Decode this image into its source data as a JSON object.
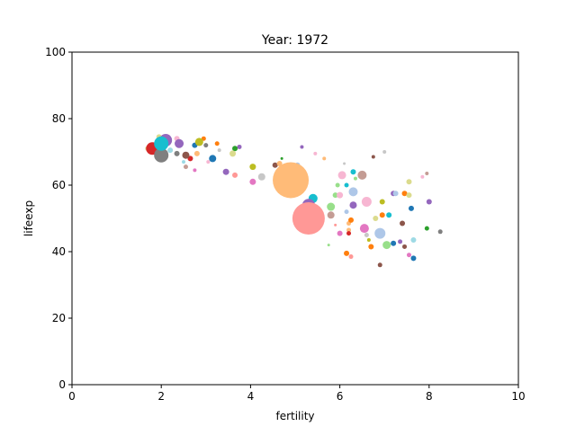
{
  "chart_data": {
    "type": "scatter",
    "title": "Year: 1972",
    "xlabel": "fertility",
    "ylabel": "lifeexp",
    "xlim": [
      0,
      10
    ],
    "ylim": [
      0,
      100
    ],
    "xticks": [
      "0",
      "2",
      "4",
      "6",
      "8",
      "10"
    ],
    "yticks": [
      "0",
      "20",
      "40",
      "60",
      "80",
      "100"
    ],
    "grid": false,
    "legend": "none",
    "points": [
      {
        "x": 4.9,
        "y": 61.5,
        "s": 20,
        "color": "#ffbb78"
      },
      {
        "x": 5.3,
        "y": 50.0,
        "s": 18,
        "color": "#ff9896"
      },
      {
        "x": 2.0,
        "y": 69.0,
        "s": 8,
        "color": "#7f7f7f"
      },
      {
        "x": 1.8,
        "y": 71.0,
        "s": 7,
        "color": "#d62728"
      },
      {
        "x": 2.1,
        "y": 73.5,
        "s": 7,
        "color": "#9467bd"
      },
      {
        "x": 2.0,
        "y": 72.5,
        "s": 8,
        "color": "#17becf"
      },
      {
        "x": 5.3,
        "y": 54.0,
        "s": 7,
        "color": "#9467bd"
      },
      {
        "x": 5.4,
        "y": 56.0,
        "s": 5,
        "color": "#17becf"
      },
      {
        "x": 6.5,
        "y": 63.0,
        "s": 5,
        "color": "#c49c94"
      },
      {
        "x": 6.6,
        "y": 55.0,
        "s": 5.5,
        "color": "#f7b6d2"
      },
      {
        "x": 6.3,
        "y": 58.0,
        "s": 5,
        "color": "#aec7e8"
      },
      {
        "x": 6.9,
        "y": 45.5,
        "s": 6,
        "color": "#aec7e8"
      },
      {
        "x": 6.55,
        "y": 47.0,
        "s": 5,
        "color": "#e377c2"
      },
      {
        "x": 7.05,
        "y": 42.0,
        "s": 4.5,
        "color": "#98df8a"
      },
      {
        "x": 5.8,
        "y": 53.5,
        "s": 4.5,
        "color": "#98df8a"
      },
      {
        "x": 5.8,
        "y": 51.0,
        "s": 4,
        "color": "#c49c94"
      },
      {
        "x": 6.05,
        "y": 63.0,
        "s": 4.5,
        "color": "#f7b6d2"
      },
      {
        "x": 6.3,
        "y": 54.0,
        "s": 4,
        "color": "#9467bd"
      },
      {
        "x": 2.4,
        "y": 72.5,
        "s": 5,
        "color": "#9467bd"
      },
      {
        "x": 2.85,
        "y": 73.0,
        "s": 4.5,
        "color": "#bcbd22"
      },
      {
        "x": 3.15,
        "y": 68.0,
        "s": 4,
        "color": "#1f77b4"
      },
      {
        "x": 2.55,
        "y": 69.0,
        "s": 4,
        "color": "#8c564b"
      },
      {
        "x": 3.6,
        "y": 69.5,
        "s": 3.5,
        "color": "#dbdb8d"
      },
      {
        "x": 4.25,
        "y": 62.5,
        "s": 4,
        "color": "#c7c7c7"
      },
      {
        "x": 4.05,
        "y": 65.5,
        "s": 3.5,
        "color": "#bcbd22"
      },
      {
        "x": 5.15,
        "y": 61.0,
        "s": 3.5,
        "color": "#98df8a"
      },
      {
        "x": 5.05,
        "y": 66.0,
        "s": 3,
        "color": "#aec7e8"
      },
      {
        "x": 4.55,
        "y": 66.0,
        "s": 3,
        "color": "#8c564b"
      },
      {
        "x": 4.65,
        "y": 66.5,
        "s": 3,
        "color": "#ffbb78"
      },
      {
        "x": 4.85,
        "y": 65.5,
        "s": 3,
        "color": "#ff7f0e"
      },
      {
        "x": 3.45,
        "y": 64.0,
        "s": 3.5,
        "color": "#9467bd"
      },
      {
        "x": 3.65,
        "y": 63.0,
        "s": 3,
        "color": "#ff9896"
      },
      {
        "x": 3.65,
        "y": 71.0,
        "s": 3,
        "color": "#2ca02c"
      },
      {
        "x": 3.75,
        "y": 71.5,
        "s": 2.5,
        "color": "#9467bd"
      },
      {
        "x": 4.05,
        "y": 61.0,
        "s": 3.5,
        "color": "#e377c2"
      },
      {
        "x": 3.25,
        "y": 72.5,
        "s": 2.5,
        "color": "#ff7f0e"
      },
      {
        "x": 3.0,
        "y": 72.0,
        "s": 2.5,
        "color": "#7f7f7f"
      },
      {
        "x": 2.75,
        "y": 72.0,
        "s": 3,
        "color": "#1f77b4"
      },
      {
        "x": 2.35,
        "y": 69.5,
        "s": 3,
        "color": "#7f7f7f"
      },
      {
        "x": 2.65,
        "y": 68.0,
        "s": 3,
        "color": "#d62728"
      },
      {
        "x": 2.8,
        "y": 69.5,
        "s": 3,
        "color": "#ffbb78"
      },
      {
        "x": 2.2,
        "y": 70.5,
        "s": 3,
        "color": "#9edae5"
      },
      {
        "x": 1.7,
        "y": 71.0,
        "s": 3,
        "color": "#dbdb8d"
      },
      {
        "x": 1.95,
        "y": 74.5,
        "s": 3,
        "color": "#dbdb8d"
      },
      {
        "x": 2.35,
        "y": 74.0,
        "s": 3,
        "color": "#f7b6d2"
      },
      {
        "x": 2.55,
        "y": 65.5,
        "s": 2.5,
        "color": "#c49c94"
      },
      {
        "x": 2.95,
        "y": 74.0,
        "s": 2.5,
        "color": "#ff7f0e"
      },
      {
        "x": 2.75,
        "y": 64.5,
        "s": 2,
        "color": "#e377c2"
      },
      {
        "x": 3.3,
        "y": 70.5,
        "s": 2,
        "color": "#c7c7c7"
      },
      {
        "x": 5.15,
        "y": 71.5,
        "s": 2,
        "color": "#9467bd"
      },
      {
        "x": 5.45,
        "y": 69.5,
        "s": 2,
        "color": "#f7b6d2"
      },
      {
        "x": 5.65,
        "y": 68.0,
        "s": 2,
        "color": "#ffbb78"
      },
      {
        "x": 5.9,
        "y": 57.0,
        "s": 3,
        "color": "#98df8a"
      },
      {
        "x": 6.0,
        "y": 57.0,
        "s": 3.5,
        "color": "#f7b6d2"
      },
      {
        "x": 5.95,
        "y": 60.0,
        "s": 2.5,
        "color": "#98df8a"
      },
      {
        "x": 6.15,
        "y": 60.0,
        "s": 2.5,
        "color": "#17becf"
      },
      {
        "x": 6.3,
        "y": 64.0,
        "s": 3,
        "color": "#17becf"
      },
      {
        "x": 6.0,
        "y": 45.5,
        "s": 3,
        "color": "#e377c2"
      },
      {
        "x": 6.2,
        "y": 46.5,
        "s": 2.5,
        "color": "#ffbb78"
      },
      {
        "x": 6.2,
        "y": 45.5,
        "s": 2.5,
        "color": "#d62728"
      },
      {
        "x": 6.25,
        "y": 49.5,
        "s": 3,
        "color": "#ff7f0e"
      },
      {
        "x": 6.2,
        "y": 48.5,
        "s": 2.5,
        "color": "#ffbb78"
      },
      {
        "x": 6.15,
        "y": 52.0,
        "s": 2.5,
        "color": "#aec7e8"
      },
      {
        "x": 6.15,
        "y": 39.5,
        "s": 3,
        "color": "#ff7f0e"
      },
      {
        "x": 6.25,
        "y": 38.5,
        "s": 2.5,
        "color": "#ff9896"
      },
      {
        "x": 6.7,
        "y": 41.5,
        "s": 3,
        "color": "#ff7f0e"
      },
      {
        "x": 6.8,
        "y": 50.0,
        "s": 3,
        "color": "#dbdb8d"
      },
      {
        "x": 6.95,
        "y": 51.0,
        "s": 3,
        "color": "#ff7f0e"
      },
      {
        "x": 6.95,
        "y": 55.0,
        "s": 3,
        "color": "#bcbd22"
      },
      {
        "x": 7.1,
        "y": 51.0,
        "s": 3,
        "color": "#17becf"
      },
      {
        "x": 7.2,
        "y": 57.5,
        "s": 3,
        "color": "#9467bd"
      },
      {
        "x": 7.25,
        "y": 57.5,
        "s": 3,
        "color": "#aec7e8"
      },
      {
        "x": 7.45,
        "y": 57.5,
        "s": 3,
        "color": "#ff7f0e"
      },
      {
        "x": 7.55,
        "y": 57.0,
        "s": 3,
        "color": "#dbdb8d"
      },
      {
        "x": 7.55,
        "y": 61.0,
        "s": 3,
        "color": "#dbdb8d"
      },
      {
        "x": 7.6,
        "y": 53.0,
        "s": 3,
        "color": "#1f77b4"
      },
      {
        "x": 7.4,
        "y": 48.5,
        "s": 3,
        "color": "#8c564b"
      },
      {
        "x": 7.2,
        "y": 42.5,
        "s": 3,
        "color": "#1f77b4"
      },
      {
        "x": 7.35,
        "y": 43.0,
        "s": 2.5,
        "color": "#9467bd"
      },
      {
        "x": 7.45,
        "y": 41.5,
        "s": 2.5,
        "color": "#8c564b"
      },
      {
        "x": 7.55,
        "y": 39.0,
        "s": 2.5,
        "color": "#e377c2"
      },
      {
        "x": 7.65,
        "y": 38.0,
        "s": 3,
        "color": "#1f77b4"
      },
      {
        "x": 7.65,
        "y": 43.5,
        "s": 3,
        "color": "#9edae5"
      },
      {
        "x": 7.95,
        "y": 47.0,
        "s": 2.5,
        "color": "#2ca02c"
      },
      {
        "x": 8.0,
        "y": 55.0,
        "s": 3,
        "color": "#9467bd"
      },
      {
        "x": 8.25,
        "y": 46.0,
        "s": 2.5,
        "color": "#7f7f7f"
      },
      {
        "x": 7.85,
        "y": 62.5,
        "s": 2,
        "color": "#f7b6d2"
      },
      {
        "x": 7.95,
        "y": 63.5,
        "s": 2,
        "color": "#c49c94"
      },
      {
        "x": 6.9,
        "y": 36.0,
        "s": 2.5,
        "color": "#8c564b"
      },
      {
        "x": 7.0,
        "y": 70.0,
        "s": 2,
        "color": "#c7c7c7"
      },
      {
        "x": 6.75,
        "y": 68.5,
        "s": 2,
        "color": "#8c564b"
      },
      {
        "x": 6.1,
        "y": 66.5,
        "s": 1.5,
        "color": "#c7c7c7"
      },
      {
        "x": 5.75,
        "y": 42.0,
        "s": 1.5,
        "color": "#98df8a"
      },
      {
        "x": 5.9,
        "y": 48.0,
        "s": 1.5,
        "color": "#ff9896"
      },
      {
        "x": 6.6,
        "y": 45.0,
        "s": 2.5,
        "color": "#c7c7c7"
      },
      {
        "x": 6.65,
        "y": 43.5,
        "s": 2,
        "color": "#bcbd22"
      },
      {
        "x": 6.35,
        "y": 62.0,
        "s": 2,
        "color": "#98df8a"
      },
      {
        "x": 2.5,
        "y": 67.0,
        "s": 2,
        "color": "#9edae5"
      },
      {
        "x": 3.05,
        "y": 67.0,
        "s": 2,
        "color": "#f7b6d2"
      },
      {
        "x": 4.55,
        "y": 61.0,
        "s": 2,
        "color": "#1f77b4"
      },
      {
        "x": 4.7,
        "y": 68.0,
        "s": 1.5,
        "color": "#2ca02c"
      },
      {
        "x": 5.2,
        "y": 50.5,
        "s": 2,
        "color": "#ffbb78"
      },
      {
        "x": 5.5,
        "y": 47.5,
        "s": 1.5,
        "color": "#dbdb8d"
      }
    ]
  }
}
